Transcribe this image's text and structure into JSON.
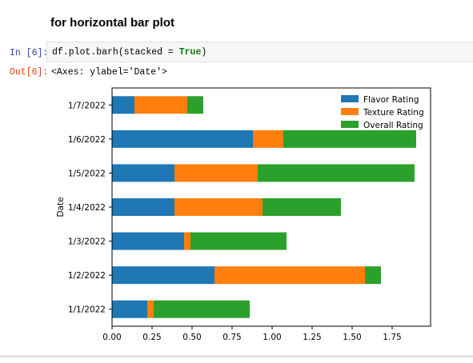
{
  "markdown": {
    "heading": "for horizontal bar plot"
  },
  "cell": {
    "in_prompt": "In [6]:",
    "code_prefix": "df.plot.barh(stacked = ",
    "code_keyword": "True",
    "code_suffix": ")",
    "out_prompt": "Out[6]:",
    "output_text": "<Axes: ylabel='Date'>"
  },
  "chart_data": {
    "type": "bar",
    "orientation": "horizontal",
    "stacked": true,
    "categories": [
      "1/1/2022",
      "1/2/2022",
      "1/3/2022",
      "1/4/2022",
      "1/5/2022",
      "1/6/2022",
      "1/7/2022"
    ],
    "series": [
      {
        "name": "Flavor Rating",
        "color": "#1f77b4",
        "values": [
          0.22,
          0.64,
          0.45,
          0.39,
          0.39,
          0.88,
          0.14
        ]
      },
      {
        "name": "Texture Rating",
        "color": "#ff7f0e",
        "values": [
          0.04,
          0.94,
          0.04,
          0.55,
          0.52,
          0.19,
          0.33
        ]
      },
      {
        "name": "Overall Rating",
        "color": "#2ca02c",
        "values": [
          0.6,
          0.1,
          0.6,
          0.49,
          0.98,
          0.83,
          0.1
        ]
      }
    ],
    "ylabel": "Date",
    "xlabel": "",
    "xlim": [
      0,
      2.0
    ],
    "xticks": [
      "0.00",
      "0.25",
      "0.50",
      "0.75",
      "1.00",
      "1.25",
      "1.50",
      "1.75"
    ],
    "grid": false,
    "legend_position": "top-right"
  }
}
